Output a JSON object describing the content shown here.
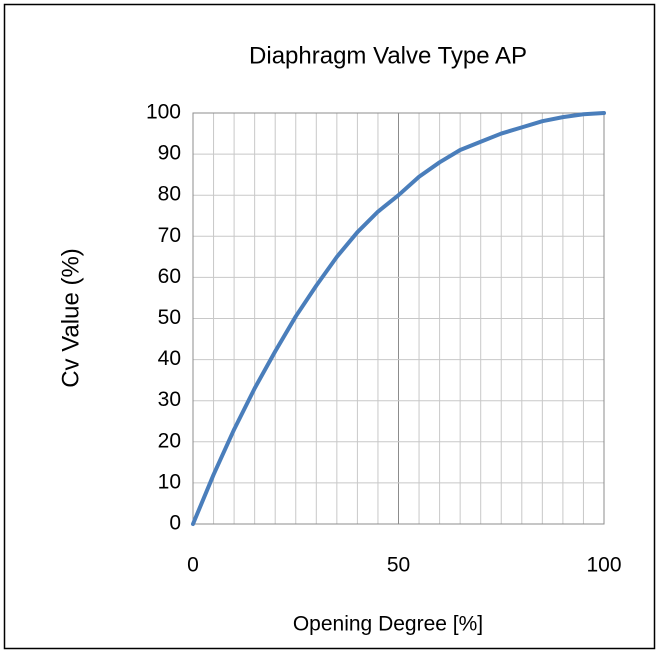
{
  "chart_data": {
    "type": "line",
    "title": "Diaphragm Valve Type AP",
    "x_label": "Opening Degree [%]",
    "y_label": "Cv Value (%)",
    "x": [
      0,
      5,
      10,
      15,
      20,
      25,
      30,
      35,
      40,
      45,
      50,
      55,
      60,
      65,
      70,
      75,
      80,
      85,
      90,
      95,
      100
    ],
    "series": [
      {
        "name": "Cv Value",
        "color": "#4a7ebb",
        "values": [
          0,
          12,
          23,
          33,
          42,
          50.5,
          58,
          65,
          71,
          76,
          80,
          84.5,
          88,
          91,
          93,
          95,
          96.5,
          98,
          99,
          99.7,
          100
        ]
      }
    ],
    "xlim": [
      0,
      100
    ],
    "ylim": [
      0,
      100
    ],
    "xticks": [
      0,
      50,
      100
    ],
    "xminorticks": [
      0,
      5,
      10,
      15,
      20,
      25,
      30,
      35,
      40,
      45,
      50,
      55,
      60,
      65,
      70,
      75,
      80,
      85,
      90,
      95,
      100
    ],
    "yticks": [
      0,
      10,
      20,
      30,
      40,
      50,
      60,
      70,
      80,
      90,
      100
    ],
    "grid": true
  }
}
